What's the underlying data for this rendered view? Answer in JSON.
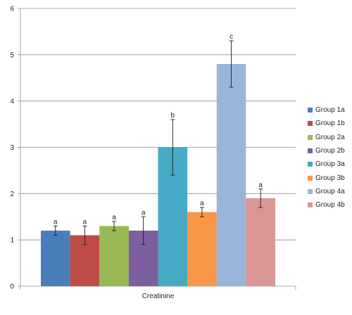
{
  "chart_data": {
    "type": "bar",
    "title": "",
    "xlabel": "",
    "ylabel": "",
    "categories": [
      "Creatinine"
    ],
    "ylim": [
      0,
      6
    ],
    "yticks": [
      "0",
      "1",
      "2",
      "3",
      "4",
      "5",
      "6"
    ],
    "grid": true,
    "legend_position": "right",
    "series": [
      {
        "name": "Group 1a",
        "values": [
          1.2
        ],
        "error": [
          0.1
        ],
        "label": "a",
        "color": "#4a7ebb"
      },
      {
        "name": "Group 1b",
        "values": [
          1.1
        ],
        "error": [
          0.2
        ],
        "label": "a",
        "color": "#be4b48"
      },
      {
        "name": "Group 2a",
        "values": [
          1.3
        ],
        "error": [
          0.1
        ],
        "label": "a",
        "color": "#98b954"
      },
      {
        "name": "Group 2b",
        "values": [
          1.2
        ],
        "error": [
          0.3
        ],
        "label": "a",
        "color": "#7d5fa0"
      },
      {
        "name": "Group 3a",
        "values": [
          3.0
        ],
        "error": [
          0.6
        ],
        "label": "b",
        "color": "#46aac5"
      },
      {
        "name": "Group 3b",
        "values": [
          1.6
        ],
        "error": [
          0.1
        ],
        "label": "a",
        "color": "#f79646"
      },
      {
        "name": "Group 4a",
        "values": [
          4.8
        ],
        "error": [
          0.5
        ],
        "label": "c",
        "color": "#9bb4da"
      },
      {
        "name": "Group 4b",
        "values": [
          1.9
        ],
        "error": [
          0.2
        ],
        "label": "a",
        "color": "#d99694"
      }
    ]
  }
}
